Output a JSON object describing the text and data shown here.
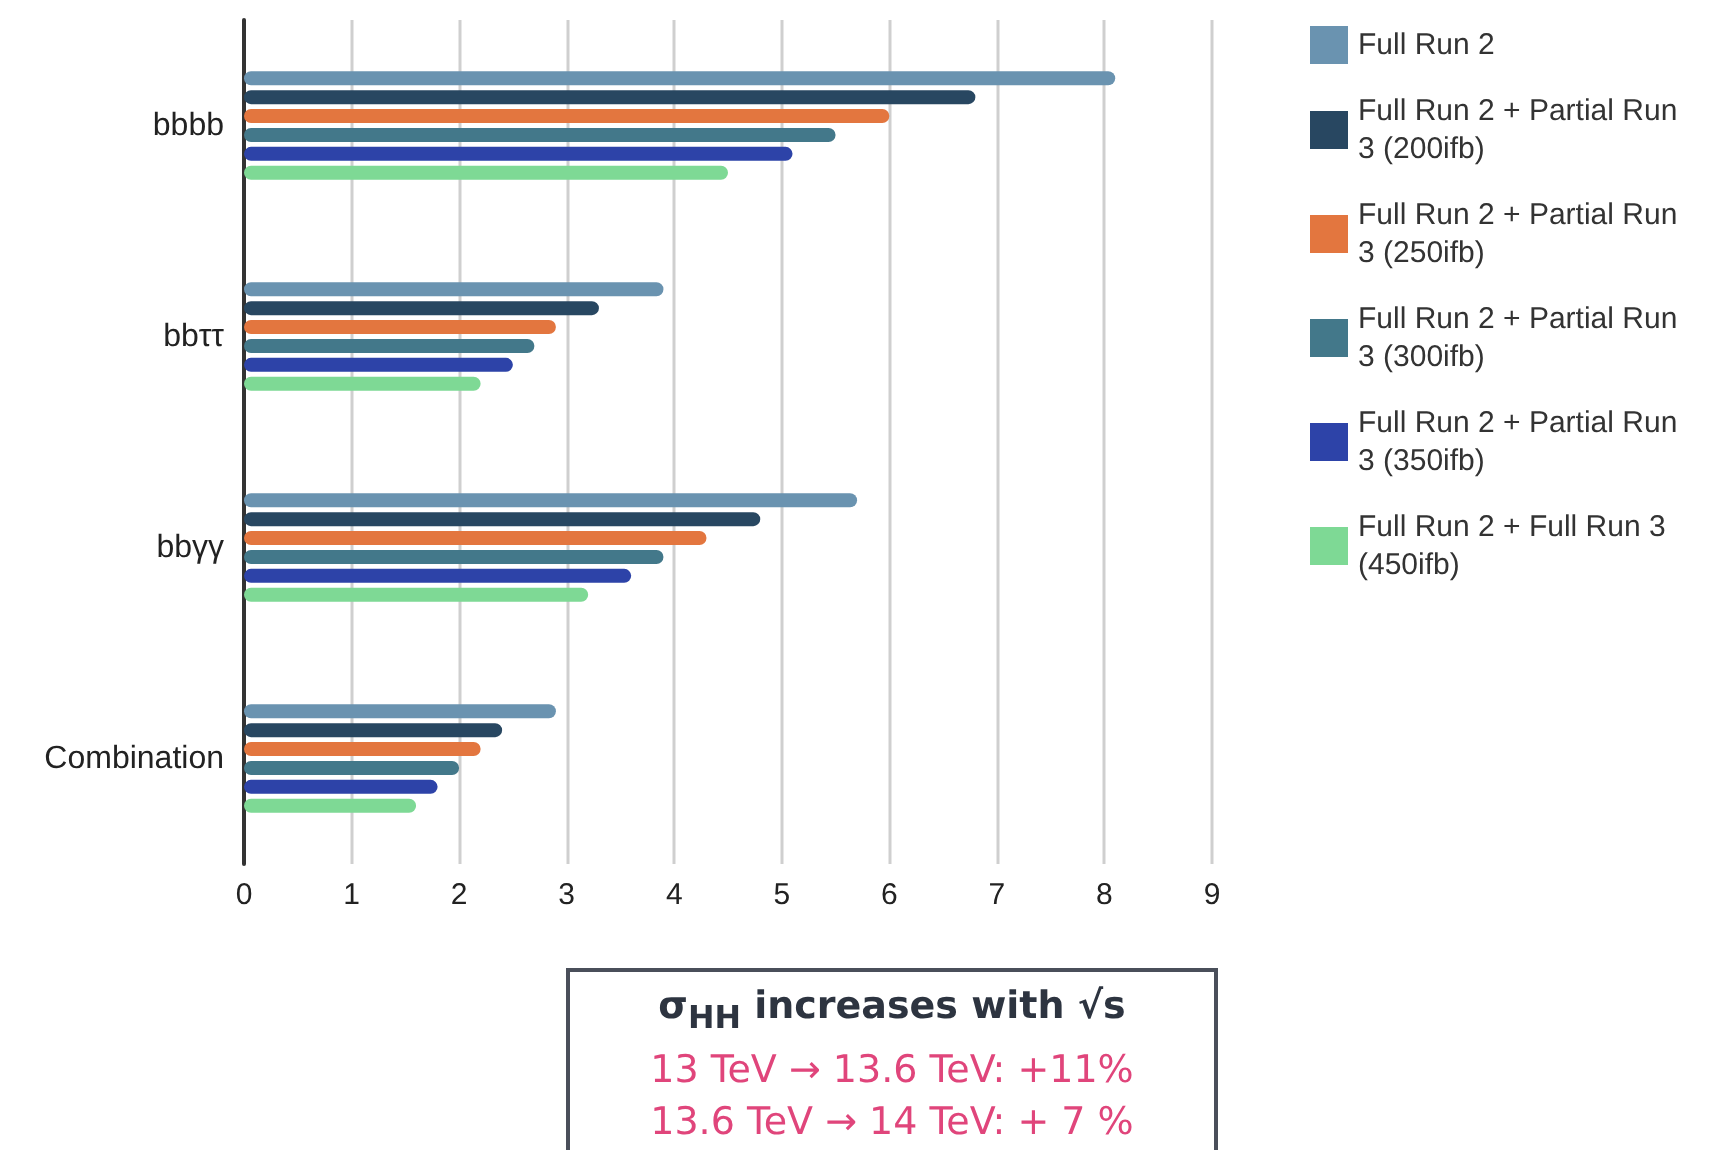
{
  "chart_data": {
    "type": "bar",
    "orientation": "horizontal",
    "categories": [
      "bbbb",
      "bbττ",
      "bbγγ",
      "Combination"
    ],
    "series": [
      {
        "name": "Full Run 2",
        "color": "#6a93b0",
        "values": [
          8.1,
          3.9,
          5.7,
          2.9
        ]
      },
      {
        "name": "Full Run 2 + Partial Run 3 (200ifb)",
        "color": "#284761",
        "values": [
          6.8,
          3.3,
          4.8,
          2.4
        ]
      },
      {
        "name": "Full Run 2 + Partial Run 3 (250ifb)",
        "color": "#e3763f",
        "values": [
          6.0,
          2.9,
          4.3,
          2.2
        ]
      },
      {
        "name": "Full Run 2 + Partial Run 3 (300ifb)",
        "color": "#43788a",
        "values": [
          5.5,
          2.7,
          3.9,
          2.0
        ]
      },
      {
        "name": "Full Run 2 + Partial Run 3 (350ifb)",
        "color": "#2d43a8",
        "values": [
          5.1,
          2.5,
          3.6,
          1.8
        ]
      },
      {
        "name": "Full Run 2 + Full Run 3 (450ifb)",
        "color": "#7ed995",
        "values": [
          4.5,
          2.2,
          3.2,
          1.6
        ]
      }
    ],
    "xlim": [
      0,
      9
    ],
    "xticks": [
      0,
      1,
      2,
      3,
      4,
      5,
      6,
      7,
      8,
      9
    ],
    "grid": "x",
    "legend": "right",
    "annotations": [
      "σ$_{HH}$ increases with √s",
      "13 TeV → 13.6 TeV: +11%",
      "13.6 TeV → 14 TeV: + 7 %"
    ]
  }
}
